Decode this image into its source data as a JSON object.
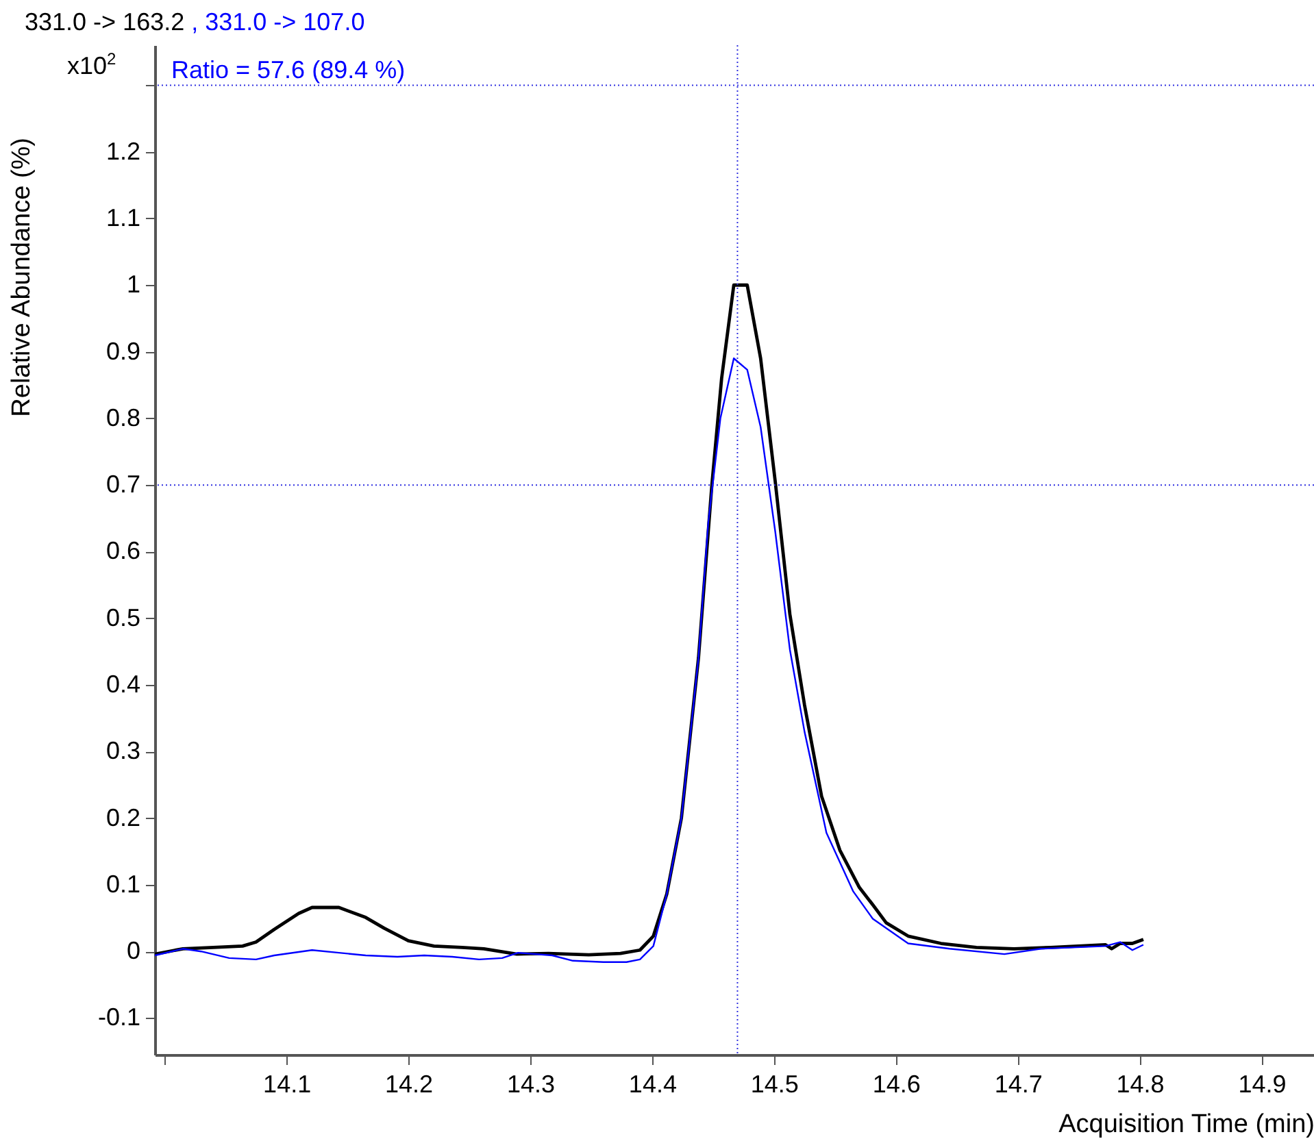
{
  "chart_data": {
    "type": "line",
    "xlabel": "Acquisition Time (min)",
    "ylabel": "Relative Abundance (%)",
    "annotations": [
      "x10$^{2}$",
      "Ratio = 57.6 (89.4 %)"
    ],
    "legend": "top left",
    "xlim": [
      13.992,
      14.943
    ],
    "xticks": [
      {
        "value": 14.0,
        "label": null
      },
      14.1,
      14.2,
      14.3,
      14.4,
      14.5,
      14.6,
      14.7,
      14.8,
      14.9
    ],
    "ylim": [
      -0.155,
      1.36
    ],
    "yticks": [
      -0.1,
      0,
      0.1,
      0.2,
      0.3,
      0.4,
      0.5,
      0.6,
      0.7,
      0.8,
      0.9,
      1,
      1.1,
      1.2,
      {
        "value": 1.3,
        "label": null
      }
    ],
    "grid": false,
    "line_style": "solid",
    "ref_lines": [
      {
        "axis": "y",
        "value": 0.7,
        "color": "#3030e0",
        "line_style": "dotted"
      },
      {
        "axis": "y",
        "value": 1.3,
        "color": "#3030e0",
        "line_style": "dotted"
      },
      {
        "axis": "x",
        "value": 14.47,
        "color": "#3030e0",
        "line_style": "dotted"
      }
    ],
    "series": [
      {
        "name": "331.0 -> 163.2",
        "color": "#000000",
        "x": [
          13.992,
          14.015,
          14.04,
          14.064,
          14.075,
          14.09,
          14.11,
          14.121,
          14.143,
          14.165,
          14.18,
          14.2,
          14.221,
          14.244,
          14.262,
          14.289,
          14.315,
          14.348,
          14.374,
          14.39,
          14.401,
          14.412,
          14.424,
          14.438,
          14.449,
          14.457,
          14.467,
          14.478,
          14.489,
          14.501,
          14.513,
          14.525,
          14.539,
          14.554,
          14.57,
          14.581,
          14.592,
          14.61,
          14.637,
          14.666,
          14.697,
          14.727,
          14.772,
          14.777,
          14.784,
          14.794,
          14.803
        ],
        "values": [
          -0.004,
          0.004,
          0.006,
          0.008,
          0.014,
          0.033,
          0.057,
          0.066,
          0.066,
          0.051,
          0.035,
          0.016,
          0.008,
          0.006,
          0.004,
          -0.004,
          -0.003,
          -0.005,
          -0.003,
          0.002,
          0.023,
          0.086,
          0.2,
          0.44,
          0.7,
          0.86,
          1.0,
          1.0,
          0.89,
          0.705,
          0.506,
          0.37,
          0.233,
          0.152,
          0.096,
          0.07,
          0.043,
          0.023,
          0.012,
          0.006,
          0.004,
          0.006,
          0.01,
          0.004,
          0.012,
          0.012,
          0.018
        ]
      },
      {
        "name": ", 331.0 -> 107.0",
        "color": "#0000ff",
        "x": [
          13.992,
          14.015,
          14.03,
          14.053,
          14.075,
          14.09,
          14.121,
          14.143,
          14.165,
          14.191,
          14.213,
          14.236,
          14.258,
          14.277,
          14.29,
          14.318,
          14.335,
          14.36,
          14.379,
          14.39,
          14.401,
          14.412,
          14.424,
          14.438,
          14.446,
          14.456,
          14.467,
          14.478,
          14.489,
          14.501,
          14.513,
          14.525,
          14.543,
          14.565,
          14.581,
          14.61,
          14.644,
          14.689,
          14.719,
          14.772,
          14.784,
          14.794,
          14.803
        ],
        "values": [
          -0.006,
          0.004,
          0,
          -0.01,
          -0.012,
          -0.006,
          0.002,
          -0.002,
          -0.006,
          -0.008,
          -0.006,
          -0.008,
          -0.012,
          -0.01,
          -0.002,
          -0.006,
          -0.014,
          -0.016,
          -0.016,
          -0.012,
          0.008,
          0.086,
          0.2,
          0.44,
          0.643,
          0.8,
          0.89,
          0.873,
          0.787,
          0.63,
          0.453,
          0.33,
          0.178,
          0.09,
          0.049,
          0.012,
          0.004,
          -0.004,
          0.004,
          0.008,
          0.014,
          0.002,
          0.01
        ]
      }
    ]
  }
}
